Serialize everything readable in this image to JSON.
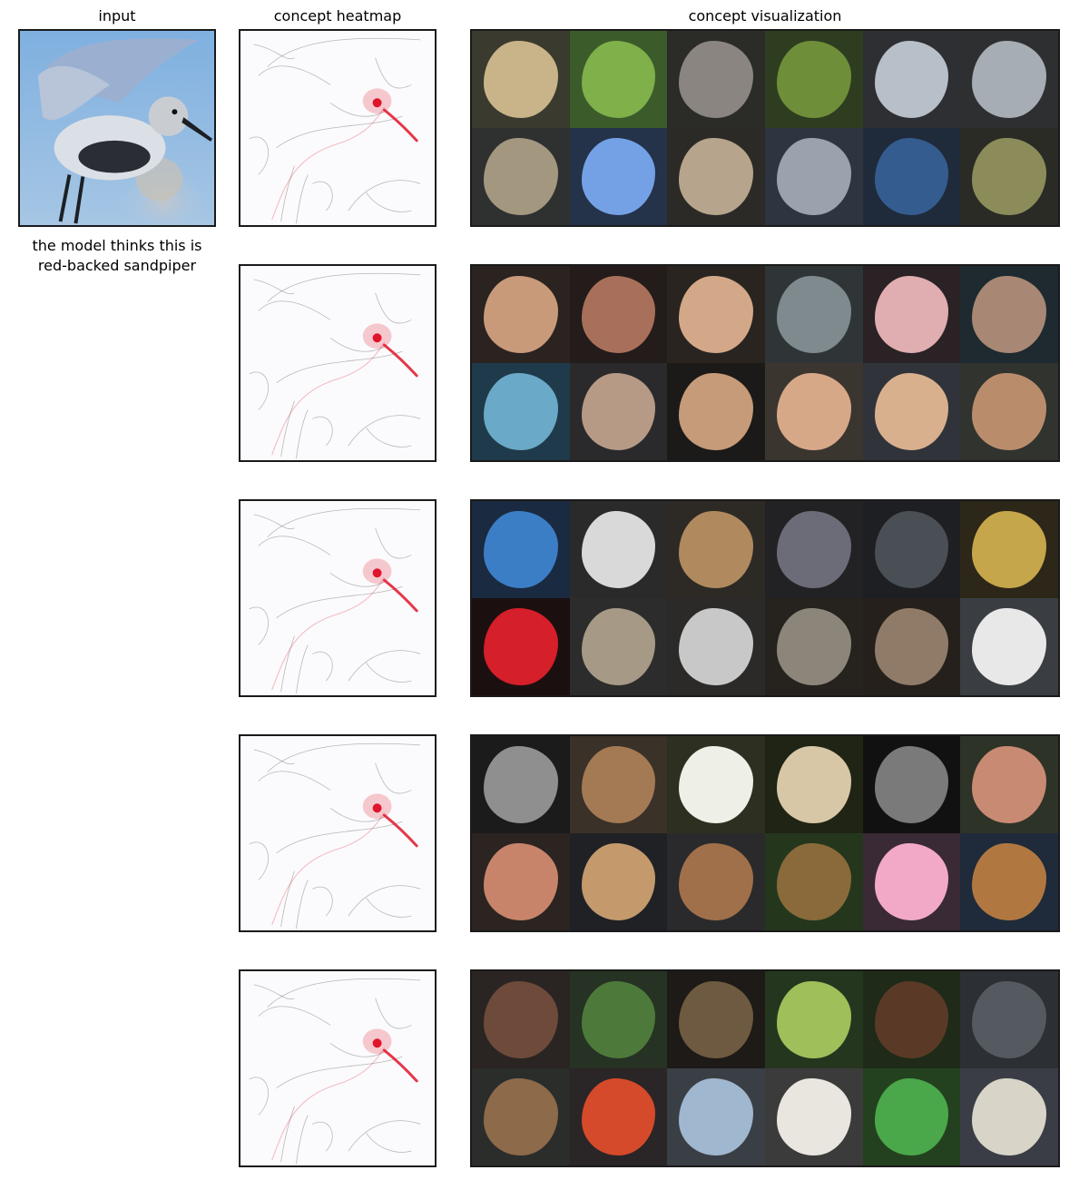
{
  "titles": {
    "input": "input",
    "heatmap": "concept heatmap",
    "visualization": "concept visualization"
  },
  "prediction": {
    "line1": "the model thinks this is",
    "line2": "red-backed sandpiper"
  },
  "input_image": {
    "label": "flying sandpiper",
    "sky": "#8fb9e0",
    "bird": "#cfd6e0"
  },
  "concepts": [
    {
      "name": "concept-1",
      "highlight_color": "#e0142a",
      "tiles": [
        {
          "bg": "#3a3a2e",
          "fg": "#c9b48a"
        },
        {
          "bg": "#3c5b2a",
          "fg": "#7fb04a"
        },
        {
          "bg": "#2b2b28",
          "fg": "#8a8580"
        },
        {
          "bg": "#2e3d1f",
          "fg": "#6f8e3a"
        },
        {
          "bg": "#2d2f33",
          "fg": "#b7bfc9"
        },
        {
          "bg": "#2e2f30",
          "fg": "#a7adb4"
        },
        {
          "bg": "#2f3030",
          "fg": "#a39780"
        },
        {
          "bg": "#24324a",
          "fg": "#74a1e6"
        },
        {
          "bg": "#2b2a26",
          "fg": "#b7a48c"
        },
        {
          "bg": "#2e3440",
          "fg": "#9aa3ad"
        },
        {
          "bg": "#1f2b3b",
          "fg": "#355c8f"
        },
        {
          "bg": "#2a2b25",
          "fg": "#8b8c5a"
        }
      ]
    },
    {
      "name": "concept-2",
      "highlight_color": "#e0142a",
      "tiles": [
        {
          "bg": "#2a2320",
          "fg": "#c99a7a"
        },
        {
          "bg": "#231c1a",
          "fg": "#a8705a"
        },
        {
          "bg": "#2a2420",
          "fg": "#d3a888"
        },
        {
          "bg": "#2f3436",
          "fg": "#7e8a8e"
        },
        {
          "bg": "#2a2225",
          "fg": "#e0aeb0"
        },
        {
          "bg": "#1e2a30",
          "fg": "#a88874"
        },
        {
          "bg": "#1f3a4a",
          "fg": "#6aa9c7"
        },
        {
          "bg": "#2a2a2c",
          "fg": "#b79a86"
        },
        {
          "bg": "#1c1a18",
          "fg": "#c59b7a"
        },
        {
          "bg": "#3b3530",
          "fg": "#d7a888"
        },
        {
          "bg": "#30343a",
          "fg": "#d9b08e"
        },
        {
          "bg": "#30332e",
          "fg": "#b98d6c"
        }
      ]
    },
    {
      "name": "concept-3",
      "highlight_color": "#e0142a",
      "tiles": [
        {
          "bg": "#1a2a40",
          "fg": "#3b7ec5"
        },
        {
          "bg": "#2a2a2a",
          "fg": "#d9d9d9"
        },
        {
          "bg": "#2d2a26",
          "fg": "#b08a5e"
        },
        {
          "bg": "#222224",
          "fg": "#6c6c78"
        },
        {
          "bg": "#1e1f22",
          "fg": "#4a4e55"
        },
        {
          "bg": "#2c2718",
          "fg": "#c6a64a"
        },
        {
          "bg": "#1c0f10",
          "fg": "#d51f2a"
        },
        {
          "bg": "#2c2c2c",
          "fg": "#a69a86"
        },
        {
          "bg": "#2b2a29",
          "fg": "#c8c8c8"
        },
        {
          "bg": "#26221e",
          "fg": "#8c867a"
        },
        {
          "bg": "#25201b",
          "fg": "#8f7b68"
        },
        {
          "bg": "#3a3d42",
          "fg": "#e8e8e8"
        }
      ]
    },
    {
      "name": "concept-4",
      "highlight_color": "#e0142a",
      "tiles": [
        {
          "bg": "#1b1b1b",
          "fg": "#8f8f8f"
        },
        {
          "bg": "#3a3128",
          "fg": "#a47a55"
        },
        {
          "bg": "#2d2f20",
          "fg": "#eef0e8"
        },
        {
          "bg": "#202414",
          "fg": "#d8c7a7"
        },
        {
          "bg": "#111111",
          "fg": "#7a7a7a"
        },
        {
          "bg": "#2e3328",
          "fg": "#c88a72"
        },
        {
          "bg": "#2b2420",
          "fg": "#c7846a"
        },
        {
          "bg": "#1f2125",
          "fg": "#c49a6c"
        },
        {
          "bg": "#2a2a2c",
          "fg": "#a0704a"
        },
        {
          "bg": "#24371d",
          "fg": "#8a6a3a"
        },
        {
          "bg": "#3a2a35",
          "fg": "#f2a9c8"
        },
        {
          "bg": "#1f2a3a",
          "fg": "#b07840"
        }
      ]
    },
    {
      "name": "concept-5",
      "highlight_color": "#e0142a",
      "tiles": [
        {
          "bg": "#2a2522",
          "fg": "#6e4a3a"
        },
        {
          "bg": "#263223",
          "fg": "#4d7a3a"
        },
        {
          "bg": "#1d1a17",
          "fg": "#6d5a40"
        },
        {
          "bg": "#25361f",
          "fg": "#9fbf5a"
        },
        {
          "bg": "#1f2a18",
          "fg": "#5a3a26"
        },
        {
          "bg": "#2c2f33",
          "fg": "#545a60"
        },
        {
          "bg": "#2b2d2b",
          "fg": "#8c6a4a"
        },
        {
          "bg": "#2a2526",
          "fg": "#d54a2a"
        },
        {
          "bg": "#3a3f45",
          "fg": "#9fb7cf"
        },
        {
          "bg": "#3b3b3b",
          "fg": "#e9e6df"
        },
        {
          "bg": "#24411f",
          "fg": "#4aa84a"
        },
        {
          "bg": "#3a3d45",
          "fg": "#d8d4c8"
        }
      ]
    }
  ]
}
